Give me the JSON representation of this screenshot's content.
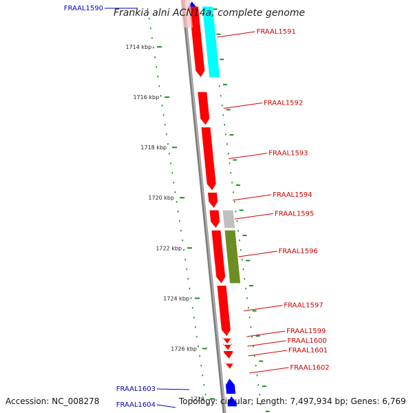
{
  "title": "Frankia alni ACN14a, complete genome",
  "footer": {
    "accession": "Accession: NC_008278",
    "topology": "Topology: circular; Length: 7,497,934 bp; Genes: 6,769"
  },
  "colors": {
    "forward_gene": "#ff0000",
    "reverse_gene": "#0000ff",
    "forward_label": "#cc0000",
    "reverse_label": "#0000cc",
    "rna_cyan": "#00ffff",
    "gray_feature": "#c0c0c0",
    "olive_feature": "#6b8e23",
    "ticks": "#228b22",
    "backbone": "#808080"
  },
  "ticks": [
    {
      "kbp": 1714,
      "label": "1714 kbp"
    },
    {
      "kbp": 1716,
      "label": "1716 kbp"
    },
    {
      "kbp": 1718,
      "label": "1718 kbp"
    },
    {
      "kbp": 1720,
      "label": "1720 kbp"
    },
    {
      "kbp": 1722,
      "label": "1722 kbp"
    },
    {
      "kbp": 1724,
      "label": "1724 kbp"
    },
    {
      "kbp": 1726,
      "label": "1726 kbp"
    },
    {
      "kbp": 1728,
      "label": "1728"
    }
  ],
  "genes": [
    {
      "name": "FRAAL1590",
      "strand": "reverse",
      "start_kbp": 1712.2,
      "end_kbp": 1712.5
    },
    {
      "name": "FRAAL1591",
      "strand": "forward",
      "start_kbp": 1712.4,
      "end_kbp": 1715.2
    },
    {
      "name": "FRAAL1592",
      "strand": "forward",
      "start_kbp": 1715.8,
      "end_kbp": 1717.1
    },
    {
      "name": "FRAAL1593",
      "strand": "forward",
      "start_kbp": 1717.2,
      "end_kbp": 1719.7
    },
    {
      "name": "FRAAL1594",
      "strand": "forward",
      "start_kbp": 1719.8,
      "end_kbp": 1720.4
    },
    {
      "name": "FRAAL1595",
      "strand": "forward",
      "start_kbp": 1720.5,
      "end_kbp": 1721.2
    },
    {
      "name": "FRAAL1596",
      "strand": "forward",
      "start_kbp": 1721.3,
      "end_kbp": 1723.4
    },
    {
      "name": "FRAAL1597",
      "strand": "forward",
      "start_kbp": 1723.5,
      "end_kbp": 1725.5
    },
    {
      "name": "FRAAL1599",
      "strand": "forward",
      "start_kbp": 1725.6,
      "end_kbp": 1725.8
    },
    {
      "name": "FRAAL1600",
      "strand": "forward",
      "start_kbp": 1725.85,
      "end_kbp": 1726.05
    },
    {
      "name": "FRAAL1601",
      "strand": "forward",
      "start_kbp": 1726.1,
      "end_kbp": 1726.4
    },
    {
      "name": "FRAAL1602",
      "strand": "forward",
      "start_kbp": 1726.6,
      "end_kbp": 1726.8
    },
    {
      "name": "FRAAL1603",
      "strand": "reverse",
      "start_kbp": 1727.2,
      "end_kbp": 1727.8
    },
    {
      "name": "FRAAL1604",
      "strand": "reverse",
      "start_kbp": 1727.9,
      "end_kbp": 1728.3
    }
  ]
}
